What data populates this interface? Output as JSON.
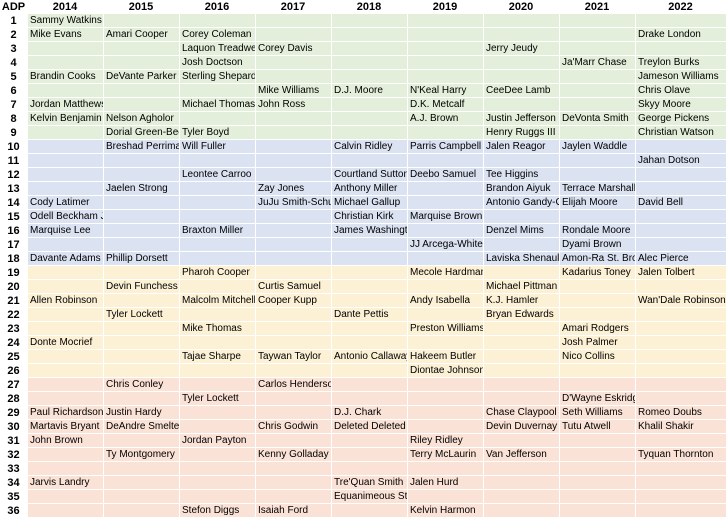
{
  "table": {
    "header": [
      "ADP",
      "2014",
      "2015",
      "2016",
      "2017",
      "2018",
      "2019",
      "2020",
      "2021",
      "2022"
    ],
    "bands": [
      {
        "from": 1,
        "to": 9,
        "color": "#e3efdb"
      },
      {
        "from": 10,
        "to": 18,
        "color": "#dbe2f2"
      },
      {
        "from": 19,
        "to": 26,
        "color": "#fdf1d5"
      },
      {
        "from": 27,
        "to": 36,
        "color": "#fbe2d6"
      }
    ],
    "rows": [
      {
        "adp": "1",
        "cells": [
          "Sammy Watkins",
          "",
          "",
          "",
          "",
          "",
          "",
          "",
          ""
        ]
      },
      {
        "adp": "2",
        "cells": [
          "Mike Evans",
          "Amari Cooper",
          "Corey Coleman",
          "",
          "",
          "",
          "",
          "",
          "Drake London"
        ]
      },
      {
        "adp": "3",
        "cells": [
          "",
          "",
          "Laquon Treadwell",
          "Corey Davis",
          "",
          "",
          "Jerry Jeudy",
          "",
          ""
        ]
      },
      {
        "adp": "4",
        "cells": [
          "",
          "",
          "Josh Doctson",
          "",
          "",
          "",
          "",
          "Ja'Marr Chase",
          "Treylon Burks"
        ]
      },
      {
        "adp": "5",
        "cells": [
          "Brandin Cooks",
          "DeVante Parker",
          "Sterling Shepard",
          "",
          "",
          "",
          "",
          "",
          "Jameson Williams"
        ]
      },
      {
        "adp": "6",
        "cells": [
          "",
          "",
          "",
          "Mike Williams",
          "D.J. Moore",
          "N'Keal Harry",
          "CeeDee Lamb",
          "",
          "Chris Olave"
        ]
      },
      {
        "adp": "7",
        "cells": [
          "Jordan Matthews",
          "",
          "Michael Thomas",
          "John Ross",
          "",
          "D.K. Metcalf",
          "",
          "",
          "Skyy Moore"
        ]
      },
      {
        "adp": "8",
        "cells": [
          "Kelvin Benjamin",
          "Nelson Agholor",
          "",
          "",
          "",
          "A.J. Brown",
          "Justin Jefferson",
          "DeVonta Smith",
          "George Pickens"
        ]
      },
      {
        "adp": "9",
        "cells": [
          "",
          "Dorial Green-Beckham",
          "Tyler Boyd",
          "",
          "",
          "",
          "Henry Ruggs III",
          "",
          "Christian Watson"
        ]
      },
      {
        "adp": "10",
        "cells": [
          "",
          "Breshad Perriman",
          "Will Fuller",
          "",
          "Calvin Ridley",
          "Parris Campbell",
          "Jalen Reagor",
          "Jaylen Waddle",
          ""
        ]
      },
      {
        "adp": "11",
        "cells": [
          "",
          "",
          "",
          "",
          "",
          "",
          "",
          "",
          "Jahan Dotson"
        ]
      },
      {
        "adp": "12",
        "cells": [
          "",
          "",
          "Leontee Carroo",
          "",
          "Courtland Sutton",
          "Deebo Samuel",
          "Tee Higgins",
          "",
          ""
        ]
      },
      {
        "adp": "13",
        "cells": [
          "",
          "Jaelen Strong",
          "",
          "Zay Jones",
          "Anthony Miller",
          "",
          "Brandon Aiyuk",
          "Terrace Marshall Jr.",
          ""
        ]
      },
      {
        "adp": "14",
        "cells": [
          "Cody Latimer",
          "",
          "",
          "JuJu Smith-Schuster",
          "Michael Gallup",
          "",
          "Antonio Gandy-Golden",
          "Elijah Moore",
          "David Bell"
        ]
      },
      {
        "adp": "15",
        "cells": [
          "Odell Beckham Jr.",
          "",
          "",
          "",
          "Christian Kirk",
          "Marquise Brown",
          "",
          "",
          ""
        ]
      },
      {
        "adp": "16",
        "cells": [
          "Marquise Lee",
          "",
          "Braxton Miller",
          "",
          "James Washington",
          "",
          "Denzel Mims",
          "Rondale Moore",
          ""
        ]
      },
      {
        "adp": "17",
        "cells": [
          "",
          "",
          "",
          "",
          "",
          "JJ Arcega-Whiteside",
          "",
          "Dyami Brown",
          ""
        ]
      },
      {
        "adp": "18",
        "cells": [
          "Davante Adams",
          "Phillip Dorsett",
          "",
          "",
          "",
          "",
          "Laviska Shenault Jr.",
          "Amon-Ra St. Brown",
          "Alec Pierce"
        ]
      },
      {
        "adp": "19",
        "cells": [
          "",
          "",
          "Pharoh Cooper",
          "",
          "",
          "Mecole Hardman",
          "",
          "Kadarius Toney",
          "Jalen Tolbert"
        ]
      },
      {
        "adp": "20",
        "cells": [
          "",
          "Devin Funchess",
          "",
          "Curtis Samuel",
          "",
          "",
          "Michael Pittman Jr.",
          "",
          ""
        ]
      },
      {
        "adp": "21",
        "cells": [
          "Allen Robinson",
          "",
          "Malcolm Mitchell",
          "Cooper Kupp",
          "",
          "Andy Isabella",
          "K.J. Hamler",
          "",
          "Wan'Dale Robinson"
        ]
      },
      {
        "adp": "22",
        "cells": [
          "",
          "Tyler Lockett",
          "",
          "",
          "Dante Pettis",
          "",
          "Bryan Edwards",
          "",
          ""
        ]
      },
      {
        "adp": "23",
        "cells": [
          "",
          "",
          "Mike Thomas",
          "",
          "",
          "Preston Williams",
          "",
          "Amari Rodgers",
          ""
        ]
      },
      {
        "adp": "24",
        "cells": [
          "Donte Mocrief",
          "",
          "",
          "",
          "",
          "",
          "",
          "Josh Palmer",
          ""
        ]
      },
      {
        "adp": "25",
        "cells": [
          "",
          "",
          "Tajae Sharpe",
          "Taywan Taylor",
          "Antonio Callaway",
          "Hakeem Butler",
          "",
          "Nico Collins",
          ""
        ]
      },
      {
        "adp": "26",
        "cells": [
          "",
          "",
          "",
          "",
          "",
          "Diontae Johnson",
          "",
          "",
          ""
        ]
      },
      {
        "adp": "27",
        "cells": [
          "",
          "Chris Conley",
          "",
          "Carlos Henderson",
          "",
          "",
          "",
          "",
          ""
        ]
      },
      {
        "adp": "28",
        "cells": [
          "",
          "",
          "Tyler Lockett",
          "",
          "",
          "",
          "",
          "D'Wayne Eskridge",
          ""
        ]
      },
      {
        "adp": "29",
        "cells": [
          "Paul Richardson",
          "Justin Hardy",
          "",
          "",
          "D.J. Chark",
          "",
          "Chase Claypool",
          "Seth Williams",
          "Romeo Doubs"
        ]
      },
      {
        "adp": "30",
        "cells": [
          "Martavis Bryant",
          "DeAndre Smelter",
          "",
          "Chris Godwin",
          "Deleted Deleted",
          "",
          "Devin Duvernay",
          "Tutu Atwell",
          "Khalil Shakir"
        ]
      },
      {
        "adp": "31",
        "cells": [
          "John Brown",
          "",
          "Jordan Payton",
          "",
          "",
          "Riley Ridley",
          "",
          "",
          ""
        ]
      },
      {
        "adp": "32",
        "cells": [
          "",
          "Ty Montgomery",
          "",
          "Kenny Golladay",
          "",
          "Terry McLaurin",
          "Van Jefferson",
          "",
          "Tyquan Thornton"
        ]
      },
      {
        "adp": "33",
        "cells": [
          "",
          "",
          "",
          "",
          "",
          "",
          "",
          "",
          ""
        ]
      },
      {
        "adp": "34",
        "cells": [
          "Jarvis Landry",
          "",
          "",
          "",
          "Tre'Quan Smith",
          "Jalen Hurd",
          "",
          "",
          ""
        ]
      },
      {
        "adp": "35",
        "cells": [
          "",
          "",
          "",
          "",
          "Equanimeous St. Brown",
          "",
          "",
          "",
          ""
        ]
      },
      {
        "adp": "36",
        "cells": [
          "",
          "",
          "Stefon Diggs",
          "Isaiah Ford",
          "",
          "Kelvin Harmon",
          "",
          "",
          ""
        ]
      }
    ]
  }
}
